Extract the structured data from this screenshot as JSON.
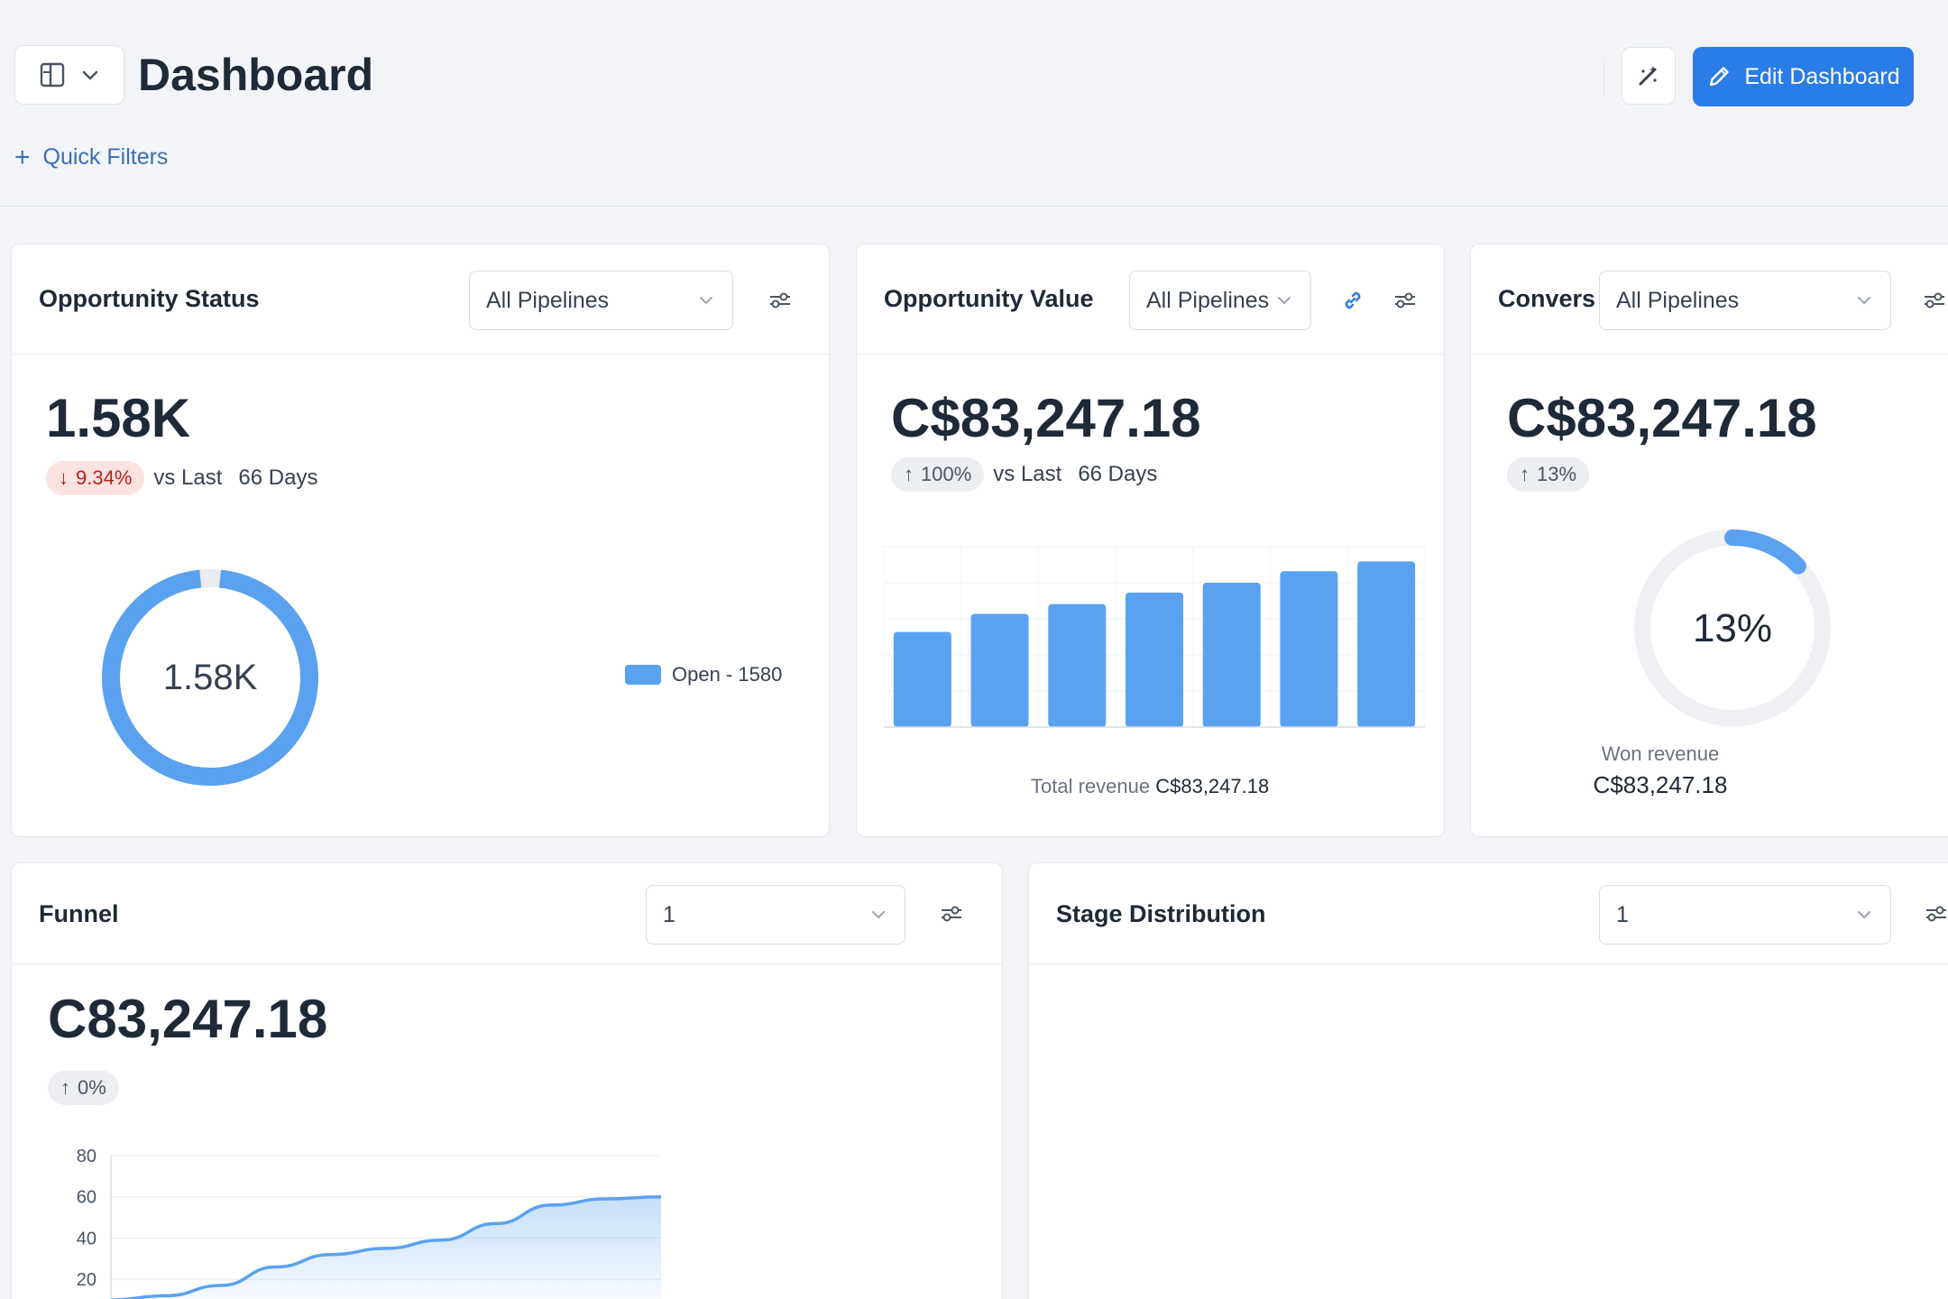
{
  "header": {
    "title": "Dashboard",
    "quick_filters_label": "Quick Filters",
    "edit_button_label": "Edit Dashboard"
  },
  "cards": {
    "opportunity_status": {
      "title": "Opportunity Status",
      "pipeline": "All Pipelines",
      "value": "1.58K",
      "trend": "9.34%",
      "trend_direction": "down",
      "vs_label": "vs Last",
      "period": "66 Days",
      "donut_label": "1.58K",
      "legend_label": "Open - 1580"
    },
    "opportunity_value": {
      "title": "Opportunity Value",
      "pipeline": "All Pipelines",
      "value": "C$83,247.18",
      "trend": "100%",
      "trend_direction": "up",
      "vs_label": "vs Last",
      "period": "66 Days",
      "footer_label": "Total revenue",
      "footer_value": "C$83,247.18"
    },
    "conversion": {
      "title": "Convers",
      "pipeline": "All Pipelines",
      "value": "C$83,247.18",
      "trend": "13%",
      "trend_direction": "up",
      "gauge_label": "13%",
      "gauge_fraction": 0.13,
      "footer_label": "Won revenue",
      "footer_value": "C$83,247.18"
    },
    "funnel": {
      "title": "Funnel",
      "selector": "1",
      "value": "C83,247.18",
      "trend": "0%",
      "trend_direction": "up"
    },
    "stage_distribution": {
      "title": "Stage Distribution",
      "selector": "1"
    }
  },
  "colors": {
    "accent": "#2a7ce6",
    "chart_blue": "#5aa2f0",
    "track": "#eef0f3",
    "down_bg": "#fde2e2"
  },
  "chart_data": [
    {
      "type": "pie",
      "chart": "opportunity-status-donut",
      "categories": [
        "Open"
      ],
      "values": [
        1580
      ],
      "legend": "right"
    },
    {
      "type": "bar",
      "chart": "opportunity-value-bars",
      "values": [
        5.8,
        6.9,
        7.5,
        8.2,
        8.8,
        9.5,
        10.1
      ],
      "ylim": [
        0,
        11
      ],
      "grid": true
    },
    {
      "type": "area",
      "chart": "funnel-area",
      "x": [
        0,
        1,
        2,
        3,
        4,
        5,
        6,
        7,
        8,
        9,
        10
      ],
      "y": [
        10,
        12,
        17,
        26,
        32,
        35,
        39,
        47,
        56,
        59,
        60
      ],
      "yticks": [
        "80",
        "60",
        "40",
        "20"
      ],
      "ylim": [
        10,
        80
      ],
      "grid": true
    }
  ]
}
